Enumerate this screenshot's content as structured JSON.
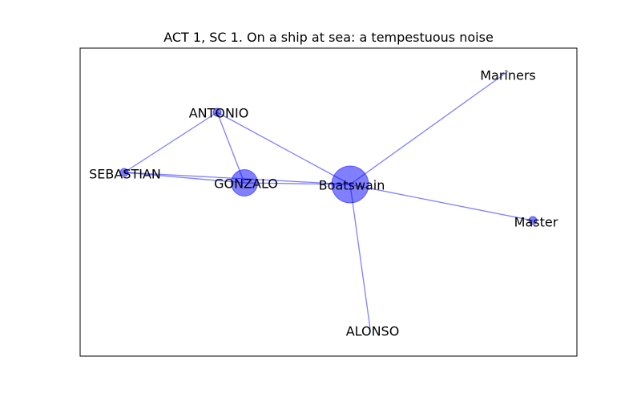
{
  "title": "ACT 1, SC 1. On a ship at sea: a tempestuous noise",
  "colors": {
    "edge": "#0000ff",
    "node": "#0000ff",
    "frame": "#000000",
    "background": "#ffffff"
  },
  "network": {
    "nodes": [
      {
        "id": "boatswain",
        "label": "Boatswain",
        "weight": 10
      },
      {
        "id": "gonzalo",
        "label": "GONZALO",
        "weight": 5
      },
      {
        "id": "antonio",
        "label": "ANTONIO",
        "weight": 1
      },
      {
        "id": "sebastian",
        "label": "SEBASTIAN",
        "weight": 1
      },
      {
        "id": "mariners",
        "label": "Mariners",
        "weight": 0
      },
      {
        "id": "master",
        "label": "Master",
        "weight": 1
      },
      {
        "id": "alonso",
        "label": "ALONSO",
        "weight": 0
      }
    ],
    "edges": [
      {
        "source": "boatswain",
        "target": "mariners"
      },
      {
        "source": "boatswain",
        "target": "antonio"
      },
      {
        "source": "boatswain",
        "target": "gonzalo"
      },
      {
        "source": "boatswain",
        "target": "sebastian"
      },
      {
        "source": "boatswain",
        "target": "master"
      },
      {
        "source": "boatswain",
        "target": "alonso"
      },
      {
        "source": "gonzalo",
        "target": "antonio"
      },
      {
        "source": "gonzalo",
        "target": "sebastian"
      },
      {
        "source": "antonio",
        "target": "sebastian"
      }
    ]
  }
}
